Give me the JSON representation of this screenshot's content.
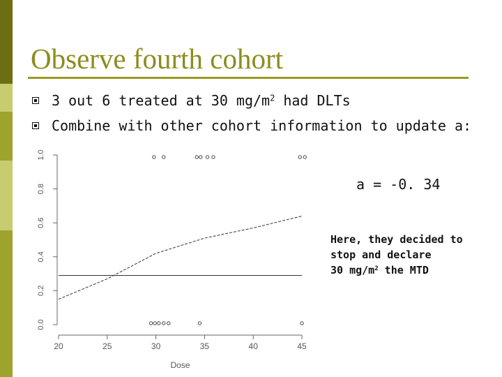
{
  "colors": {
    "accent": "#8c8c1f",
    "rule": "#9a9a22",
    "sidebar_dark": "#6d6d14",
    "sidebar_light": "#c6cc6f",
    "sidebar_mid": "#9ea32e"
  },
  "slide": {
    "title": "Observe fourth cohort",
    "bullets": [
      {
        "text": "3 out 6 treated at 30 mg/m",
        "sup": "2",
        "text_after": " had DLTs"
      },
      {
        "text": "Combine with other cohort information to update a:",
        "sup": "",
        "text_after": ""
      }
    ],
    "a_value": "a = -0. 34",
    "note": {
      "line1": "Here, they decided to",
      "line2": "stop and declare",
      "line3_prefix": "30 mg/m",
      "line3_sup": "2",
      "line3_suffix": " the MTD"
    }
  },
  "chart_data": {
    "type": "line",
    "xlabel": "Dose",
    "ylabel": "",
    "xlim": [
      20,
      45
    ],
    "ylim": [
      0,
      1
    ],
    "x_ticks": [
      20,
      25,
      30,
      35,
      40,
      45
    ],
    "y_ticks": [
      "0.0",
      "0.2",
      "0.4",
      "0.6",
      "0.8",
      "1.0"
    ],
    "series": [
      {
        "x": [
          20,
          25,
          30,
          35,
          40,
          45
        ],
        "values": [
          0.15,
          0.27,
          0.42,
          0.51,
          0.57,
          0.64
        ]
      }
    ],
    "threshold": 0.29,
    "observations_top": [
      29.8,
      30.8,
      34.2,
      34.6,
      35.3,
      35.9,
      44.8,
      45.3
    ],
    "observations_bottom": [
      29.5,
      29.9,
      30.3,
      30.8,
      31.3,
      34.5,
      45.0
    ]
  }
}
